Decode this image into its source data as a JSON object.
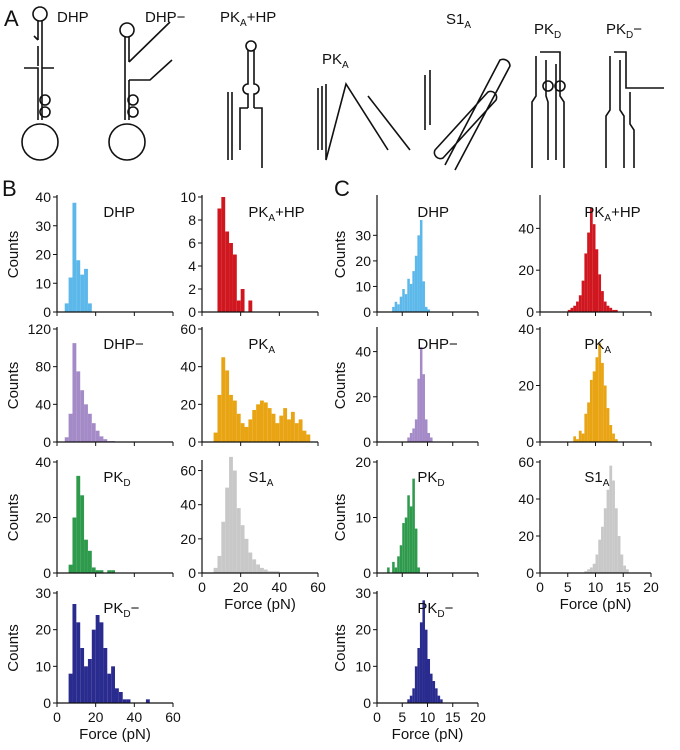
{
  "panel_labels": [
    "A",
    "B",
    "C"
  ],
  "diagram_labels": [
    {
      "text": "DHP"
    },
    {
      "text": "DHP−"
    },
    {
      "text": "PK",
      "sub": "A",
      "suffix": "+HP"
    },
    {
      "text": "PK",
      "sub": "A"
    },
    {
      "text": "S1",
      "sub": "A"
    },
    {
      "text": "PK",
      "sub": "D"
    },
    {
      "text": "PK",
      "sub": "D",
      "suffix": "−"
    }
  ],
  "chart_data": [
    {
      "type": "histogram",
      "title": {
        "text": "DHP"
      },
      "ylabel": "Counts",
      "color": "#5cb8ea",
      "bins": [
        4,
        6,
        8,
        10,
        12,
        14,
        16,
        18
      ],
      "values": [
        3,
        12,
        38,
        18,
        13,
        15,
        3
      ],
      "xlim": [
        0,
        60
      ],
      "xticks": [
        0,
        20,
        40,
        60
      ],
      "xtick_labels": false,
      "ylim": [
        0,
        40
      ],
      "yticks": [
        0,
        10,
        20,
        30,
        40
      ]
    },
    {
      "type": "histogram",
      "title": {
        "text": "PK",
        "sub": "A",
        "suffix": "+HP"
      },
      "color": "#d0161f",
      "bins": [
        8,
        10,
        12,
        14,
        16,
        18,
        20,
        22,
        24,
        26
      ],
      "values": [
        9,
        10,
        7,
        6,
        5,
        1,
        2,
        0,
        1
      ],
      "xlim": [
        0,
        60
      ],
      "xticks": [
        0,
        20,
        40,
        60
      ],
      "xtick_labels": false,
      "ylim": [
        0,
        10
      ],
      "yticks": [
        0,
        2,
        4,
        6,
        8,
        10
      ]
    },
    {
      "type": "histogram",
      "title": {
        "text": "DHP−"
      },
      "ylabel": "Counts",
      "color": "#a48bc8",
      "bins": [
        4,
        6,
        8,
        10,
        12,
        14,
        16,
        18,
        20,
        22,
        24,
        26,
        28,
        30
      ],
      "values": [
        5,
        30,
        105,
        75,
        55,
        40,
        30,
        20,
        12,
        6,
        3,
        1,
        1
      ],
      "xlim": [
        0,
        60
      ],
      "xticks": [
        0,
        20,
        40,
        60
      ],
      "xtick_labels": false,
      "ylim": [
        0,
        120
      ],
      "yticks": [
        0,
        40,
        80,
        120
      ]
    },
    {
      "type": "histogram",
      "title": {
        "text": "PK",
        "sub": "A"
      },
      "color": "#e9a414",
      "bins": [
        6,
        8,
        10,
        12,
        14,
        16,
        18,
        20,
        22,
        24,
        26,
        28,
        30,
        32,
        34,
        36,
        38,
        40,
        42,
        44,
        46,
        48,
        50,
        52,
        54,
        56
      ],
      "values": [
        5,
        25,
        45,
        38,
        25,
        22,
        15,
        10,
        8,
        12,
        17,
        20,
        22,
        21,
        18,
        15,
        10,
        14,
        18,
        12,
        16,
        10,
        12,
        6,
        4
      ],
      "xlim": [
        0,
        60
      ],
      "xticks": [
        0,
        20,
        40,
        60
      ],
      "xtick_labels": false,
      "ylim": [
        0,
        60
      ],
      "yticks": [
        0,
        20,
        40,
        60
      ]
    },
    {
      "type": "histogram",
      "title": {
        "text": "PK",
        "sub": "D"
      },
      "ylabel": "Counts",
      "color": "#2e9a4c",
      "bins": [
        6,
        8,
        10,
        12,
        14,
        16,
        18,
        20,
        22,
        24,
        26,
        28,
        30
      ],
      "values": [
        3,
        20,
        35,
        28,
        12,
        8,
        2,
        1,
        1,
        0,
        1,
        1
      ],
      "xlim": [
        0,
        60
      ],
      "xticks": [
        0,
        20,
        40,
        60
      ],
      "xtick_labels": false,
      "ylim": [
        0,
        40
      ],
      "yticks": [
        0,
        20,
        40
      ]
    },
    {
      "type": "histogram",
      "title": {
        "text": "S1",
        "sub": "A"
      },
      "xlabel": "Force (pN)",
      "color": "#c8c8c8",
      "bins": [
        6,
        8,
        10,
        12,
        14,
        16,
        18,
        20,
        22,
        24,
        26,
        28,
        30,
        32,
        34,
        36,
        38,
        40
      ],
      "values": [
        3,
        10,
        30,
        50,
        68,
        60,
        38,
        28,
        20,
        12,
        8,
        5,
        3,
        2,
        1,
        1,
        1
      ],
      "xlim": [
        0,
        60
      ],
      "xticks": [
        0,
        20,
        40,
        60
      ],
      "ylim": [
        0,
        65
      ],
      "yticks": [
        0,
        20,
        40,
        60
      ]
    },
    {
      "type": "histogram",
      "title": {
        "text": "PK",
        "sub": "D",
        "suffix": "−"
      },
      "ylabel": "Counts",
      "xlabel": "Force (pN)",
      "color": "#2a2b8e",
      "bins": [
        6,
        8,
        10,
        12,
        14,
        16,
        18,
        20,
        22,
        24,
        26,
        28,
        30,
        32,
        34,
        36,
        38,
        40,
        42,
        44,
        46,
        48,
        50
      ],
      "values": [
        8,
        27,
        22,
        15,
        10,
        12,
        20,
        24,
        22,
        15,
        8,
        10,
        4,
        3,
        1,
        1,
        0,
        0,
        0,
        0,
        1,
        0
      ],
      "xlim": [
        0,
        60
      ],
      "xticks": [
        0,
        20,
        40,
        60
      ],
      "ylim": [
        0,
        30
      ],
      "yticks": [
        0,
        10,
        20,
        30
      ]
    },
    {
      "type": "histogram",
      "title": {
        "text": "DHP"
      },
      "ylabel": "Counts",
      "color": "#5cb8ea",
      "bins": [
        3,
        3.5,
        4,
        4.5,
        5,
        5.5,
        6,
        6.5,
        7,
        7.5,
        8,
        8.5,
        9,
        9.5,
        10,
        10.5
      ],
      "values": [
        2,
        4,
        3,
        6,
        9,
        7,
        13,
        11,
        16,
        22,
        30,
        36,
        12,
        2,
        1
      ],
      "xlim": [
        0,
        20
      ],
      "xticks": [
        0,
        5,
        10,
        15,
        20
      ],
      "xtick_labels": false,
      "ylim": [
        0,
        45
      ],
      "yticks": [
        0,
        10,
        20,
        30
      ]
    },
    {
      "type": "histogram",
      "title": {
        "text": "PK",
        "sub": "A",
        "suffix": "+HP"
      },
      "color": "#d0161f",
      "bins": [
        5,
        5.5,
        6,
        6.5,
        7,
        7.5,
        8,
        8.5,
        9,
        9.5,
        10,
        10.5,
        11,
        11.5,
        12,
        12.5,
        13,
        13.5,
        14
      ],
      "values": [
        1,
        2,
        3,
        5,
        8,
        15,
        28,
        38,
        50,
        42,
        30,
        18,
        10,
        5,
        3,
        2,
        1,
        1
      ],
      "xlim": [
        0,
        20
      ],
      "xticks": [
        0,
        5,
        10,
        15,
        20
      ],
      "xtick_labels": false,
      "ylim": [
        0,
        55
      ],
      "yticks": [
        0,
        20,
        40
      ]
    },
    {
      "type": "histogram",
      "title": {
        "text": "DHP−"
      },
      "ylabel": "Counts",
      "color": "#a48bc8",
      "bins": [
        6,
        6.5,
        7,
        7.5,
        8,
        8.5,
        9,
        9.5,
        10,
        10.5,
        11
      ],
      "values": [
        2,
        4,
        6,
        10,
        28,
        42,
        30,
        10,
        4,
        2
      ],
      "xlim": [
        0,
        20
      ],
      "xticks": [
        0,
        5,
        10,
        15,
        20
      ],
      "xtick_labels": false,
      "ylim": [
        0,
        50
      ],
      "yticks": [
        0,
        20,
        40
      ]
    },
    {
      "type": "histogram",
      "title": {
        "text": "PK",
        "sub": "A"
      },
      "color": "#e9a414",
      "bins": [
        6,
        6.5,
        7,
        7.5,
        8,
        8.5,
        9,
        9.5,
        10,
        10.5,
        11,
        11.5,
        12,
        12.5,
        13,
        13.5,
        14
      ],
      "values": [
        2,
        1,
        4,
        3,
        10,
        14,
        22,
        25,
        30,
        35,
        28,
        20,
        12,
        6,
        3,
        1
      ],
      "xlim": [
        0,
        20
      ],
      "xticks": [
        0,
        5,
        10,
        15,
        20
      ],
      "xtick_labels": false,
      "ylim": [
        0,
        40
      ],
      "yticks": [
        0,
        20,
        40
      ]
    },
    {
      "type": "histogram",
      "title": {
        "text": "PK",
        "sub": "D"
      },
      "ylabel": "Counts",
      "color": "#2e9a4c",
      "bins": [
        2,
        2.5,
        3,
        3.5,
        4,
        4.5,
        5,
        5.5,
        6,
        6.5,
        7,
        7.5,
        8,
        8.5
      ],
      "values": [
        1,
        0,
        2,
        1,
        3,
        5,
        9,
        10,
        14,
        12,
        17,
        8,
        1
      ],
      "xlim": [
        0,
        20
      ],
      "xticks": [
        0,
        5,
        10,
        15,
        20
      ],
      "xtick_labels": false,
      "ylim": [
        0,
        20
      ],
      "yticks": [
        0,
        10,
        20
      ]
    },
    {
      "type": "histogram",
      "title": {
        "text": "S1",
        "sub": "A"
      },
      "xlabel": "Force (pN)",
      "color": "#c8c8c8",
      "bins": [
        8,
        8.5,
        9,
        9.5,
        10,
        10.5,
        11,
        11.5,
        12,
        12.5,
        13,
        13.5,
        14,
        14.5,
        15,
        15.5,
        16
      ],
      "values": [
        1,
        2,
        3,
        5,
        10,
        18,
        25,
        35,
        45,
        58,
        50,
        35,
        20,
        10,
        4,
        2
      ],
      "xlim": [
        0,
        20
      ],
      "xticks": [
        0,
        5,
        10,
        15,
        20
      ],
      "ylim": [
        0,
        60
      ],
      "yticks": [
        0,
        20,
        40,
        60
      ]
    },
    {
      "type": "histogram",
      "title": {
        "text": "PK",
        "sub": "D",
        "suffix": "−"
      },
      "ylabel": "Counts",
      "xlabel": "Force (pN)",
      "color": "#2a2b8e",
      "bins": [
        6,
        6.5,
        7,
        7.5,
        8,
        8.5,
        9,
        9.5,
        10,
        10.5,
        11,
        11.5,
        12,
        12.5,
        13
      ],
      "values": [
        1,
        2,
        4,
        10,
        15,
        22,
        28,
        20,
        12,
        8,
        6,
        4,
        2,
        1
      ],
      "xlim": [
        0,
        20
      ],
      "xticks": [
        0,
        5,
        10,
        15,
        20
      ],
      "ylim": [
        0,
        30
      ],
      "yticks": [
        0,
        10,
        20,
        30
      ]
    }
  ]
}
